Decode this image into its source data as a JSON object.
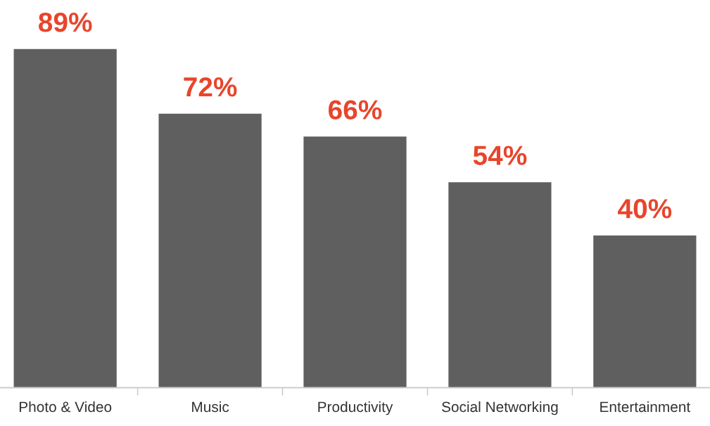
{
  "chart_data": {
    "type": "bar",
    "categories": [
      "Photo & Video",
      "Music",
      "Productivity",
      "Social Networking",
      "Entertainment"
    ],
    "values": [
      89,
      72,
      66,
      54,
      40
    ],
    "value_labels": [
      "89%",
      "72%",
      "66%",
      "54%",
      "40%"
    ],
    "color": "#5f5f5f",
    "grid": false,
    "legend": false
  }
}
